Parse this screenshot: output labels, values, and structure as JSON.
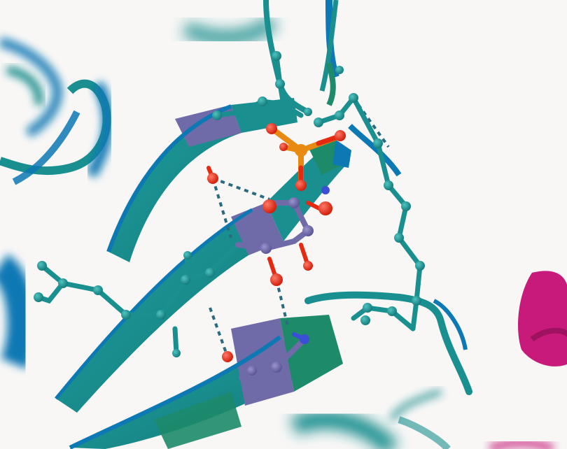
{
  "scene": {
    "background_color": "#f8f7f6",
    "colors": {
      "cartoon_teal": "#1a8f8f",
      "cartoon_blue": "#0c78b4",
      "cartoon_green": "#1d8a6a",
      "highlight_purple": "#6f6aa8",
      "oxygen_red": "#e52a12",
      "nitrogen_blue": "#3b4fd6",
      "phosphorus_orange": "#e88a12",
      "helix_magenta": "#c71a7a",
      "h_bond_dash": "#2a6b80"
    }
  }
}
